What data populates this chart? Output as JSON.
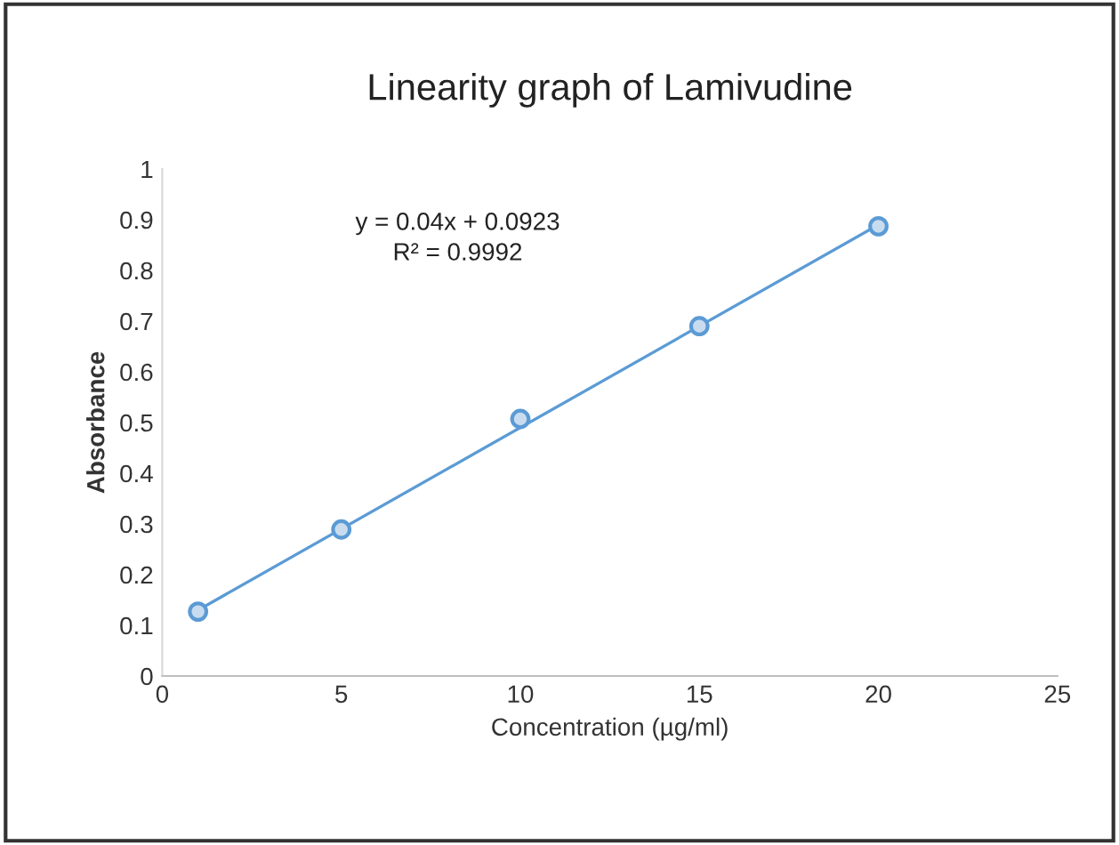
{
  "chart_data": {
    "type": "scatter",
    "title": "Linearity graph of Lamivudine",
    "xlabel": "Concentration (µg/ml)",
    "ylabel": "Absorbance",
    "series": [
      {
        "color": "#5b9bd5",
        "x": [
          1,
          5,
          10,
          15,
          20
        ],
        "values": [
          0.127,
          0.289,
          0.507,
          0.69,
          0.887
        ],
        "marker": "circle"
      },
      {
        "type": "line",
        "color": "#5b9bd5",
        "x": [
          1,
          20
        ],
        "values": [
          0.13,
          0.89
        ],
        "marker": "none",
        "line_style": "solid"
      }
    ],
    "annotations": [
      "y = 0.04x + 0.0923",
      "R² = 0.9992"
    ],
    "xlim": [
      0,
      25
    ],
    "xticks": [
      0,
      5,
      10,
      15,
      20,
      25
    ],
    "ylim": [
      0,
      1
    ],
    "yticks": [
      0,
      0.1,
      0.2,
      0.3,
      0.4,
      0.5,
      0.6,
      0.7,
      0.8,
      0.9,
      1
    ],
    "grid": false,
    "legend": false
  }
}
